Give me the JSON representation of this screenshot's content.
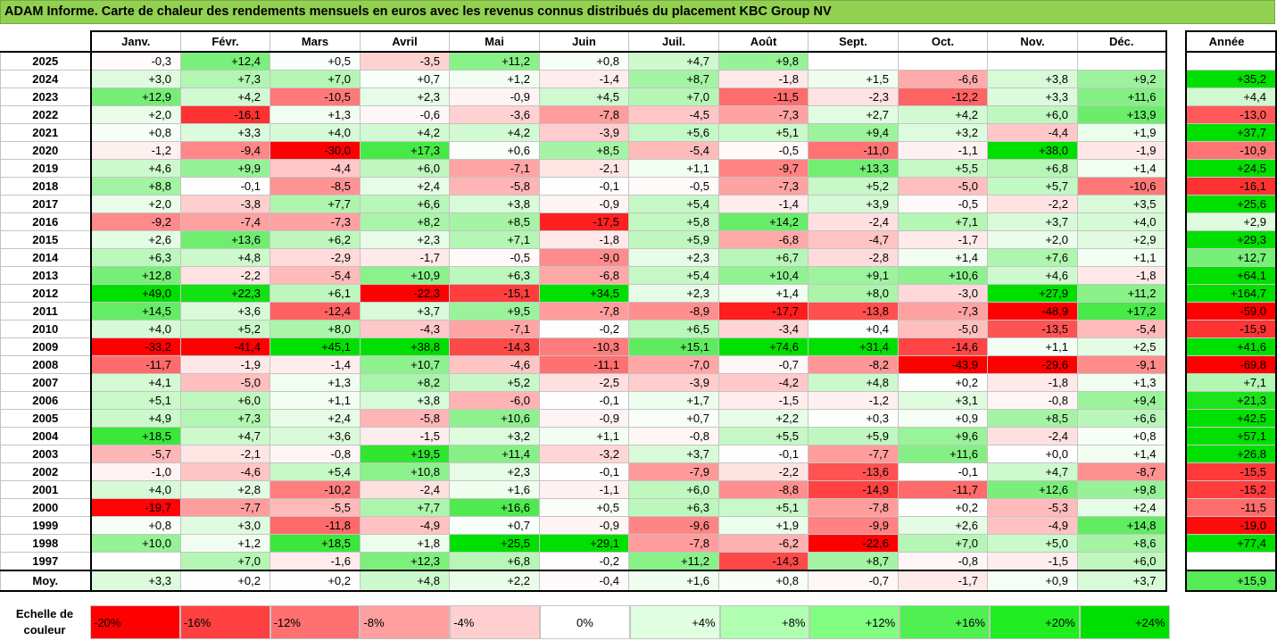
{
  "title": "ADAM Informe. Carte de chaleur des rendements mensuels en euros avec les revenus connus distribués du placement KBC Group NV",
  "months": [
    "Janv.",
    "Févr.",
    "Mars",
    "Avril",
    "Mai",
    "Juin",
    "Juil.",
    "Août",
    "Sept.",
    "Oct.",
    "Nov.",
    "Déc."
  ],
  "annual_header": "Année",
  "average_label": "Moy.",
  "legend_label": "Echelle de couleur",
  "legend": [
    {
      "label": "-20%",
      "color": "#ff0000"
    },
    {
      "label": "-16%",
      "color": "#ff4040"
    },
    {
      "label": "-12%",
      "color": "#ff7070"
    },
    {
      "label": "-8%",
      "color": "#ff9f9f"
    },
    {
      "label": "-4%",
      "color": "#ffcfcf"
    },
    {
      "label": "0%",
      "color": "#ffffff"
    },
    {
      "label": "+4%",
      "color": "#e0ffe0"
    },
    {
      "label": "+8%",
      "color": "#b0ffb0"
    },
    {
      "label": "+12%",
      "color": "#80ff80"
    },
    {
      "label": "+16%",
      "color": "#50f050"
    },
    {
      "label": "+20%",
      "color": "#20ee20"
    },
    {
      "label": "+24%",
      "color": "#00e000"
    }
  ],
  "chart_data": {
    "type": "heatmap",
    "title": "ADAM Informe. Carte de chaleur des rendements mensuels en euros avec les revenus connus distribués du placement KBC Group NV",
    "columns": [
      "Janv.",
      "Févr.",
      "Mars",
      "Avril",
      "Mai",
      "Juin",
      "Juil.",
      "Août",
      "Sept.",
      "Oct.",
      "Nov.",
      "Déc."
    ],
    "rows": [
      {
        "year": "2025",
        "months": [
          "-0,3",
          "+12,4",
          "+0,5",
          "-3,5",
          "+11,2",
          "+0,8",
          "+4,7",
          "+9,8",
          "",
          "",
          "",
          ""
        ],
        "annual": ""
      },
      {
        "year": "2024",
        "months": [
          "+3,0",
          "+7,3",
          "+7,0",
          "+0,7",
          "+1,2",
          "-1,4",
          "+8,7",
          "-1,8",
          "+1,5",
          "-6,6",
          "+3,8",
          "+9,2"
        ],
        "annual": "+35,2"
      },
      {
        "year": "2023",
        "months": [
          "+12,9",
          "+4,2",
          "-10,5",
          "+2,3",
          "-0,9",
          "+4,5",
          "+7,0",
          "-11,5",
          "-2,3",
          "-12,2",
          "+3,3",
          "+11,6"
        ],
        "annual": "+4,4"
      },
      {
        "year": "2022",
        "months": [
          "+2,0",
          "-16,1",
          "+1,3",
          "-0,6",
          "-3,6",
          "-7,8",
          "-4,5",
          "-7,3",
          "+2,7",
          "+4,2",
          "+6,0",
          "+13,9"
        ],
        "annual": "-13,0"
      },
      {
        "year": "2021",
        "months": [
          "+0,8",
          "+3,3",
          "+4,0",
          "+4,2",
          "+4,2",
          "-3,9",
          "+5,6",
          "+5,1",
          "+9,4",
          "+3,2",
          "-4,4",
          "+1,9"
        ],
        "annual": "+37,7"
      },
      {
        "year": "2020",
        "months": [
          "-1,2",
          "-9,4",
          "-30,0",
          "+17,3",
          "+0,6",
          "+8,5",
          "-5,4",
          "-0,5",
          "-11,0",
          "-1,1",
          "+38,0",
          "-1,9"
        ],
        "annual": "-10,9"
      },
      {
        "year": "2019",
        "months": [
          "+4,6",
          "+9,9",
          "-4,4",
          "+6,0",
          "-7,1",
          "-2,1",
          "+1,1",
          "-9,7",
          "+13,3",
          "+5,5",
          "+6,8",
          "+1,4"
        ],
        "annual": "+24,5"
      },
      {
        "year": "2018",
        "months": [
          "+8,8",
          "-0,1",
          "-8,5",
          "+2,4",
          "-5,8",
          "-0,1",
          "-0,5",
          "-7,3",
          "+5,2",
          "-5,0",
          "+5,7",
          "-10,6"
        ],
        "annual": "-16,1"
      },
      {
        "year": "2017",
        "months": [
          "+2,0",
          "-3,8",
          "+7,7",
          "+6,6",
          "+3,8",
          "-0,9",
          "+5,4",
          "-1,4",
          "+3,9",
          "-0,5",
          "-2,2",
          "+3,5"
        ],
        "annual": "+25,6"
      },
      {
        "year": "2016",
        "months": [
          "-9,2",
          "-7,4",
          "-7,3",
          "+8,2",
          "+8,5",
          "-17,5",
          "+5,8",
          "+14,2",
          "-2,4",
          "+7,1",
          "+3,7",
          "+4,0"
        ],
        "annual": "+2,9"
      },
      {
        "year": "2015",
        "months": [
          "+2,6",
          "+13,6",
          "+6,2",
          "+2,3",
          "+7,1",
          "-1,8",
          "+5,9",
          "-6,8",
          "-4,7",
          "-1,7",
          "+2,0",
          "+2,9"
        ],
        "annual": "+29,3"
      },
      {
        "year": "2014",
        "months": [
          "+6,3",
          "+4,8",
          "-2,9",
          "-1,7",
          "-0,5",
          "-9,0",
          "+2,3",
          "+6,7",
          "-2,8",
          "+1,4",
          "+7,6",
          "+1,1"
        ],
        "annual": "+12,7"
      },
      {
        "year": "2013",
        "months": [
          "+12,8",
          "-2,2",
          "-5,4",
          "+10,9",
          "+6,3",
          "-6,8",
          "+5,4",
          "+10,4",
          "+9,1",
          "+10,6",
          "+4,6",
          "-1,8"
        ],
        "annual": "+64,1"
      },
      {
        "year": "2012",
        "months": [
          "+49,0",
          "+22,3",
          "+6,1",
          "-22,3",
          "-15,1",
          "+34,5",
          "+2,3",
          "+1,4",
          "+8,0",
          "-3,0",
          "+27,9",
          "+11,2"
        ],
        "annual": "+164,7"
      },
      {
        "year": "2011",
        "months": [
          "+14,5",
          "+3,6",
          "-12,4",
          "+3,7",
          "+9,5",
          "-7,8",
          "-8,9",
          "-17,7",
          "-13,8",
          "-7,3",
          "-48,9",
          "+17,2"
        ],
        "annual": "-59,0"
      },
      {
        "year": "2010",
        "months": [
          "+4,0",
          "+5,2",
          "+8,0",
          "-4,3",
          "-7,1",
          "-0,2",
          "+6,5",
          "-3,4",
          "+0,4",
          "-5,0",
          "-13,5",
          "-5,4"
        ],
        "annual": "-15,9"
      },
      {
        "year": "2009",
        "months": [
          "-33,2",
          "-41,4",
          "+45,1",
          "+38,8",
          "-14,3",
          "-10,3",
          "+15,1",
          "+74,6",
          "+31,4",
          "-14,6",
          "+1,1",
          "+2,5"
        ],
        "annual": "+41,6"
      },
      {
        "year": "2008",
        "months": [
          "-11,7",
          "-1,9",
          "-1,4",
          "+10,7",
          "-4,6",
          "-11,1",
          "-7,0",
          "-0,7",
          "-8,2",
          "-43,9",
          "-29,6",
          "-9,1"
        ],
        "annual": "-69,8"
      },
      {
        "year": "2007",
        "months": [
          "+4,1",
          "-5,0",
          "+1,3",
          "+8,2",
          "+5,2",
          "-2,5",
          "-3,9",
          "-4,2",
          "+4,8",
          "+0,2",
          "-1,8",
          "+1,3"
        ],
        "annual": "+7,1"
      },
      {
        "year": "2006",
        "months": [
          "+5,1",
          "+6,0",
          "+1,1",
          "+3,8",
          "-6,0",
          "-0,1",
          "+1,7",
          "-1,5",
          "-1,2",
          "+3,1",
          "-0,8",
          "+9,4"
        ],
        "annual": "+21,3"
      },
      {
        "year": "2005",
        "months": [
          "+4,9",
          "+7,3",
          "+2,4",
          "-5,8",
          "+10,6",
          "-0,9",
          "+0,7",
          "+2,2",
          "+0,3",
          "+0,9",
          "+8,5",
          "+6,6"
        ],
        "annual": "+42,5"
      },
      {
        "year": "2004",
        "months": [
          "+18,5",
          "+4,7",
          "+3,6",
          "-1,5",
          "+3,2",
          "+1,1",
          "-0,8",
          "+5,5",
          "+5,9",
          "+9,6",
          "-2,4",
          "+0,8"
        ],
        "annual": "+57,1"
      },
      {
        "year": "2003",
        "months": [
          "-5,7",
          "-2,1",
          "-0,8",
          "+19,5",
          "+11,4",
          "-3,2",
          "+3,7",
          "-0,1",
          "-7,7",
          "+11,6",
          "+0,0",
          "+1,4"
        ],
        "annual": "+26,8"
      },
      {
        "year": "2002",
        "months": [
          "-1,0",
          "-4,6",
          "+5,4",
          "+10,8",
          "+2,3",
          "-0,1",
          "-7,9",
          "-2,2",
          "-13,6",
          "-0,1",
          "+4,7",
          "-8,7"
        ],
        "annual": "-15,5"
      },
      {
        "year": "2001",
        "months": [
          "+4,0",
          "+2,8",
          "-10,2",
          "-2,4",
          "+1,6",
          "-1,1",
          "+6,0",
          "-8,8",
          "-14,9",
          "-11,7",
          "+12,6",
          "+9,8"
        ],
        "annual": "-15,2"
      },
      {
        "year": "2000",
        "months": [
          "-19,7",
          "-7,7",
          "-5,5",
          "+7,7",
          "+16,6",
          "+0,5",
          "+6,3",
          "+5,1",
          "-7,8",
          "+0,2",
          "-5,3",
          "+2,4"
        ],
        "annual": "-11,5"
      },
      {
        "year": "1999",
        "months": [
          "+0,8",
          "+3,0",
          "-11,8",
          "-4,9",
          "+0,7",
          "-0,9",
          "-9,6",
          "+1,9",
          "-9,9",
          "+2,6",
          "-4,9",
          "+14,8"
        ],
        "annual": "-19,0"
      },
      {
        "year": "1998",
        "months": [
          "+10,0",
          "+1,2",
          "+18,5",
          "+1,8",
          "+25,5",
          "+29,1",
          "-7,8",
          "-6,2",
          "-22,6",
          "+7,0",
          "+5,0",
          "+8,6"
        ],
        "annual": "+77,4"
      },
      {
        "year": "1997",
        "months": [
          "",
          "+7,0",
          "-1,6",
          "+12,3",
          "+6,8",
          "-0,2",
          "+11,2",
          "-14,3",
          "+8,7",
          "-0,8",
          "-1,5",
          "+6,0"
        ],
        "annual": ""
      }
    ],
    "average": {
      "months": [
        "+3,3",
        "+0,2",
        "+0,2",
        "+4,8",
        "+2,2",
        "-0,4",
        "+1,6",
        "+0,8",
        "-0,7",
        "-1,7",
        "+0,9",
        "+3,7"
      ],
      "annual": "+15,9"
    },
    "color_scale": {
      "min": -20,
      "max": 24,
      "negative": "#ff0000",
      "zero": "#ffffff",
      "positive": "#00e000"
    }
  }
}
